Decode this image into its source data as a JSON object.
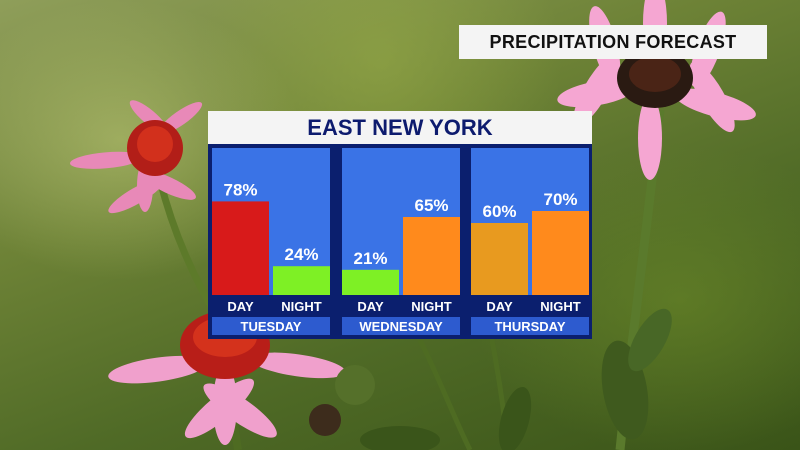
{
  "header": {
    "title": "PRECIPITATION FORECAST",
    "location": "EAST NEW YORK"
  },
  "colors": {
    "panel_bg": "#3a73e6",
    "frame": "#0b1f6e",
    "day_label_bg": "#2d5bcf"
  },
  "chart_data": {
    "type": "bar",
    "title": "",
    "xlabel": "",
    "ylabel": "",
    "ylim": [
      0,
      100
    ],
    "groups": [
      {
        "name": "TUESDAY",
        "bars": [
          {
            "label": "DAY",
            "value": 78,
            "display": "78%",
            "color": "#d81a1a"
          },
          {
            "label": "NIGHT",
            "value": 24,
            "display": "24%",
            "color": "#7ef025"
          }
        ]
      },
      {
        "name": "WEDNESDAY",
        "bars": [
          {
            "label": "DAY",
            "value": 21,
            "display": "21%",
            "color": "#7ef025"
          },
          {
            "label": "NIGHT",
            "value": 65,
            "display": "65%",
            "color": "#ff8a1c"
          }
        ]
      },
      {
        "name": "THURSDAY",
        "bars": [
          {
            "label": "DAY",
            "value": 60,
            "display": "60%",
            "color": "#e89a1f"
          },
          {
            "label": "NIGHT",
            "value": 70,
            "display": "70%",
            "color": "#ff8a1c"
          }
        ]
      }
    ]
  }
}
